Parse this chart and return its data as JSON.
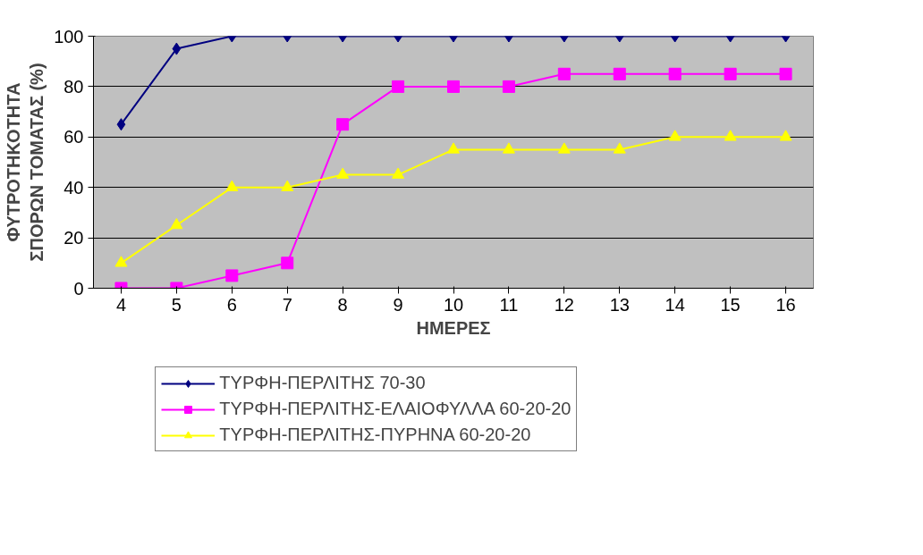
{
  "chart_data": {
    "type": "line",
    "xlabel": "ΗΜΕΡΕΣ",
    "ylabel": "ΦΥΤΡΟΤΗΚΟΤΗΤΑ\nΣΠΟΡΩΝ ΤΟΜΑΤΑΣ (%)",
    "categories": [
      "4",
      "5",
      "6",
      "7",
      "8",
      "9",
      "10",
      "11",
      "12",
      "13",
      "14",
      "15",
      "16"
    ],
    "series": [
      {
        "name": "ΤΥΡΦΗ-ΠΕΡΛΙΤΗΣ 70-30",
        "color": "#000080",
        "marker": "diamond",
        "values": [
          65,
          95,
          100,
          100,
          100,
          100,
          100,
          100,
          100,
          100,
          100,
          100,
          100
        ]
      },
      {
        "name": "ΤΥΡΦΗ-ΠΕΡΛΙΤΗΣ-ΕΛΑΙΟΦΥΛΛΑ 60-20-20",
        "color": "#ff00ff",
        "marker": "square",
        "values": [
          0,
          0,
          5,
          10,
          65,
          80,
          80,
          80,
          85,
          85,
          85,
          85,
          85
        ]
      },
      {
        "name": "ΤΥΡΦΗ-ΠΕΡΛΙΤΗΣ-ΠΥΡΗΝΑ 60-20-20",
        "color": "#ffff00",
        "marker": "triangle",
        "values": [
          10,
          25,
          40,
          40,
          45,
          45,
          55,
          55,
          55,
          55,
          60,
          60,
          60
        ]
      }
    ],
    "ylim": [
      0,
      100
    ],
    "yticks": [
      0,
      20,
      40,
      60,
      80,
      100
    ],
    "grid": "y",
    "legend": "bottom",
    "line_style": "solid"
  }
}
